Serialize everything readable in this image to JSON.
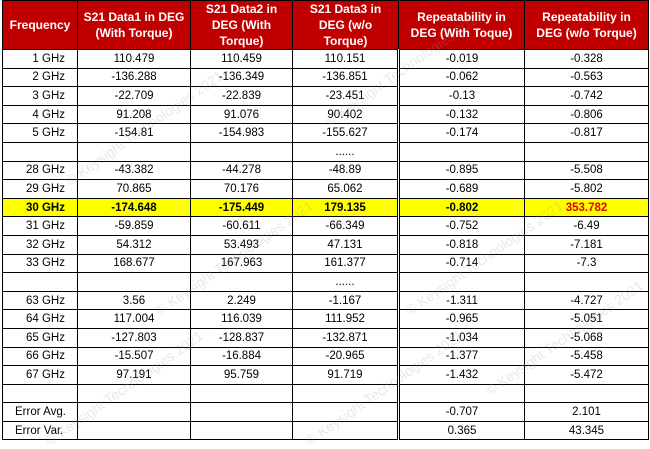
{
  "table": {
    "header": [
      "Frequency",
      "S21 Data1 in DEG (With Torque)",
      "S21 Data2 in DEG (With Torque)",
      "S21 Data3 in DEG (w/o Torque)",
      "Repeatability in DEG (With Toque)",
      "Repeatability in DEG (w/o Torque)"
    ],
    "ellipsis": "......",
    "blocks": [
      [
        {
          "freq": "1 GHz",
          "d1": "110.479",
          "d2": "110.459",
          "d3": "110.151",
          "r1": "-0.019",
          "r2": "-0.328"
        },
        {
          "freq": "2 GHz",
          "d1": "-136.288",
          "d2": "-136.349",
          "d3": "-136.851",
          "r1": "-0.062",
          "r2": "-0.563"
        },
        {
          "freq": "3 GHz",
          "d1": "-22.709",
          "d2": "-22.839",
          "d3": "-23.451",
          "r1": "-0.13",
          "r2": "-0.742"
        },
        {
          "freq": "4 GHz",
          "d1": "91.208",
          "d2": "91.076",
          "d3": "90.402",
          "r1": "-0.132",
          "r2": "-0.806"
        },
        {
          "freq": "5 GHz",
          "d1": "-154.81",
          "d2": "-154.983",
          "d3": "-155.627",
          "r1": "-0.174",
          "r2": "-0.817"
        }
      ],
      [
        {
          "freq": "28 GHz",
          "d1": "-43.382",
          "d2": "-44.278",
          "d3": "-48.89",
          "r1": "-0.895",
          "r2": "-5.508"
        },
        {
          "freq": "29 GHz",
          "d1": "70.865",
          "d2": "70.176",
          "d3": "65.062",
          "r1": "-0.689",
          "r2": "-5.802"
        },
        {
          "freq": "30 GHz",
          "d1": "-174.648",
          "d2": "-175.449",
          "d3": "179.135",
          "r1": "-0.802",
          "r2": "353.782",
          "highlight": true
        },
        {
          "freq": "31 GHz",
          "d1": "-59.859",
          "d2": "-60.611",
          "d3": "-66.349",
          "r1": "-0.752",
          "r2": "-6.49"
        },
        {
          "freq": "32 GHz",
          "d1": "54.312",
          "d2": "53.493",
          "d3": "47.131",
          "r1": "-0.818",
          "r2": "-7.181"
        },
        {
          "freq": "33 GHz",
          "d1": "168.677",
          "d2": "167.963",
          "d3": "161.377",
          "r1": "-0.714",
          "r2": "-7.3"
        }
      ],
      [
        {
          "freq": "63 GHz",
          "d1": "3.56",
          "d2": "2.249",
          "d3": "-1.167",
          "r1": "-1.311",
          "r2": "-4.727"
        },
        {
          "freq": "64 GHz",
          "d1": "117.004",
          "d2": "116.039",
          "d3": "111.952",
          "r1": "-0.965",
          "r2": "-5.051"
        },
        {
          "freq": "65 GHz",
          "d1": "-127.803",
          "d2": "-128.837",
          "d3": "-132.871",
          "r1": "-1.034",
          "r2": "-5.068"
        },
        {
          "freq": "66 GHz",
          "d1": "-15.507",
          "d2": "-16.884",
          "d3": "-20.965",
          "r1": "-1.377",
          "r2": "-5.458"
        },
        {
          "freq": "67 GHz",
          "d1": "97.191",
          "d2": "95.759",
          "d3": "91.719",
          "r1": "-1.432",
          "r2": "-5.472"
        }
      ]
    ],
    "errors": [
      {
        "label": "Error Avg.",
        "r1": "-0.707",
        "r2": "2.101"
      },
      {
        "label": "Error Var.",
        "r1": "0.365",
        "r2": "43.345"
      }
    ],
    "watermark": "© Keysight Technologies 2021"
  }
}
